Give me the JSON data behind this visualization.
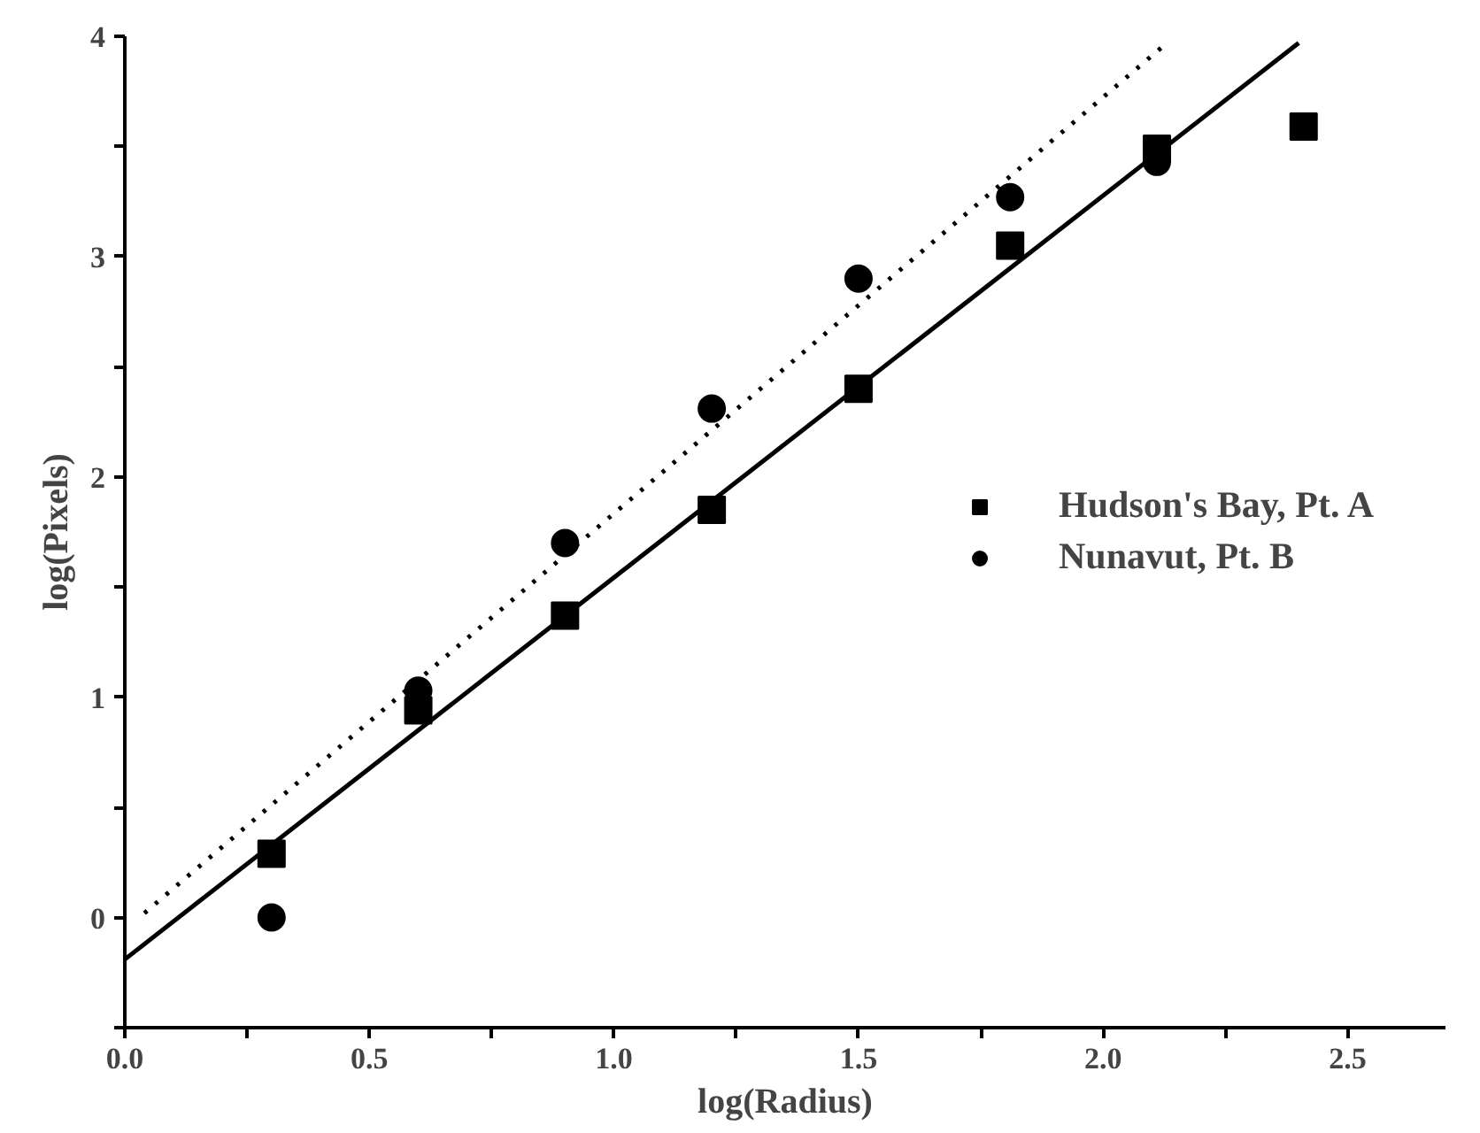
{
  "chart_data": {
    "type": "scatter",
    "xlabel": "log(Radius)",
    "ylabel": "log(Pixels)",
    "xlim": [
      0,
      2.7
    ],
    "ylim": [
      -0.5,
      4
    ],
    "xticks": [
      {
        "value": 0,
        "label": "0.0"
      },
      {
        "value": 0.25,
        "label": null
      },
      {
        "value": 0.5,
        "label": "0.5"
      },
      {
        "value": 0.75,
        "label": null
      },
      {
        "value": 1,
        "label": "1.0"
      },
      {
        "value": 1.25,
        "label": null
      },
      {
        "value": 1.5,
        "label": "1.5"
      },
      {
        "value": 1.75,
        "label": null
      },
      {
        "value": 2,
        "label": "2.0"
      },
      {
        "value": 2.25,
        "label": null
      },
      {
        "value": 2.5,
        "label": "2.5"
      }
    ],
    "yticks": [
      {
        "value": -0.5,
        "label": null
      },
      0,
      {
        "value": 0.5,
        "label": null
      },
      1,
      {
        "value": 1.5,
        "label": null
      },
      2,
      {
        "value": 2.5,
        "label": null
      },
      3,
      {
        "value": 3.5,
        "label": null
      },
      4
    ],
    "legend": "right",
    "series": [
      {
        "name": "Hudson's Bay, Pt. A",
        "color": "#000000",
        "marker": "square",
        "x": [
          0.3,
          0.6,
          0.9,
          1.2,
          1.5,
          1.81,
          2.11,
          2.41
        ],
        "values": [
          0.29,
          0.94,
          1.37,
          1.85,
          2.4,
          3.05,
          3.49,
          3.59
        ]
      },
      {
        "name": "Nunavut, Pt. B",
        "color": "#000000",
        "marker": "circle",
        "x": [
          0.3,
          0.6,
          0.9,
          1.2,
          1.5,
          1.81,
          2.11
        ],
        "values": [
          0,
          1.03,
          1.7,
          2.31,
          2.9,
          3.27,
          3.43
        ]
      },
      {
        "type": "line",
        "color": "#000000",
        "line_style": "solid",
        "x": [
          0,
          2.4
        ],
        "values": [
          -0.19,
          3.97
        ]
      },
      {
        "type": "line",
        "color": "#000000",
        "line_style": "dotted",
        "x": [
          0.04,
          2.12
        ],
        "values": [
          0.02,
          3.95
        ]
      }
    ]
  }
}
